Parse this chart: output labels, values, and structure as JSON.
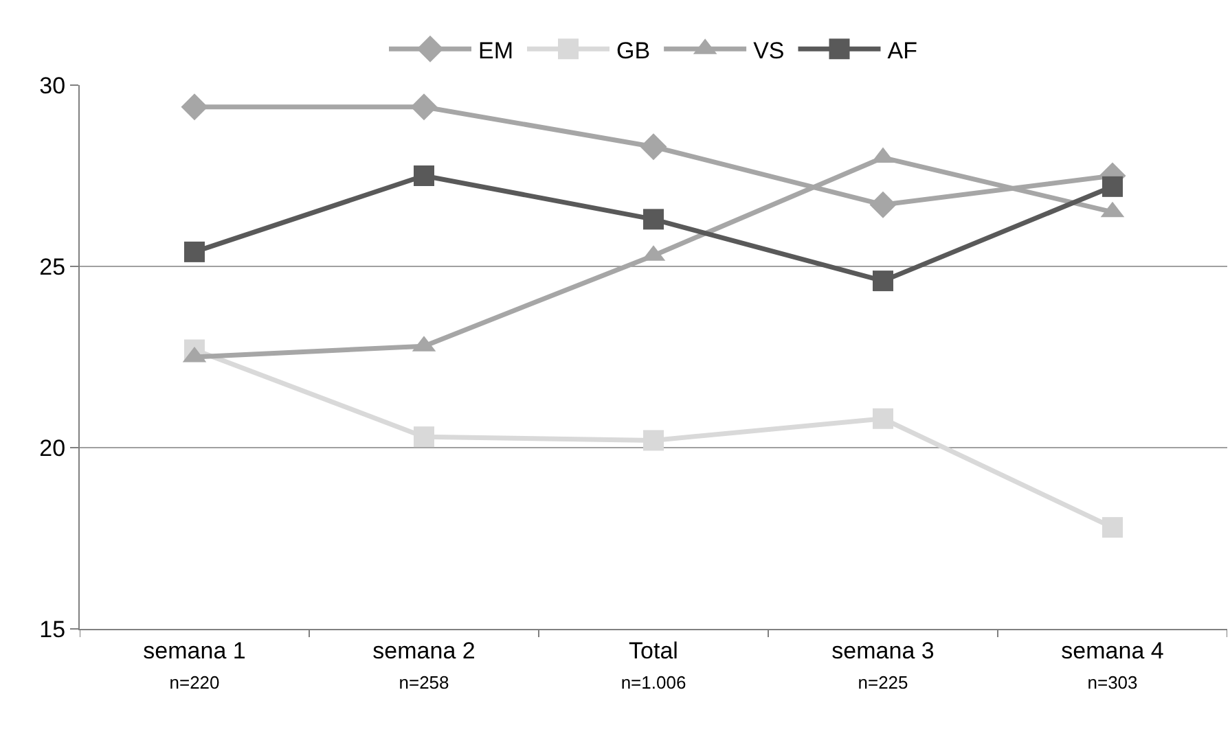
{
  "chart_data": {
    "type": "line",
    "categories": [
      "semana 1\nn=220",
      "semana 2\nn=258",
      "Total\nn=1.006",
      "semana 3\nn=225",
      "semana 4\nn=303"
    ],
    "series": [
      {
        "name": "EM",
        "color": "#a6a6a6",
        "marker": "diamond",
        "values": [
          29.4,
          29.4,
          28.3,
          26.7,
          27.5
        ]
      },
      {
        "name": "GB",
        "color": "#d9d9d9",
        "marker": "square",
        "values": [
          22.7,
          20.3,
          20.2,
          20.8,
          17.8
        ]
      },
      {
        "name": "VS",
        "color": "#a6a6a6",
        "marker": "triangle",
        "values": [
          22.5,
          22.8,
          25.3,
          28.0,
          26.5
        ]
      },
      {
        "name": "AF",
        "color": "#595959",
        "marker": "square",
        "values": [
          25.4,
          27.5,
          26.3,
          24.6,
          27.2
        ]
      }
    ],
    "ylim": [
      15,
      30
    ],
    "yticks": [
      15,
      20,
      25,
      30
    ],
    "grid": "y",
    "legend": "top",
    "line_style": "solid"
  }
}
